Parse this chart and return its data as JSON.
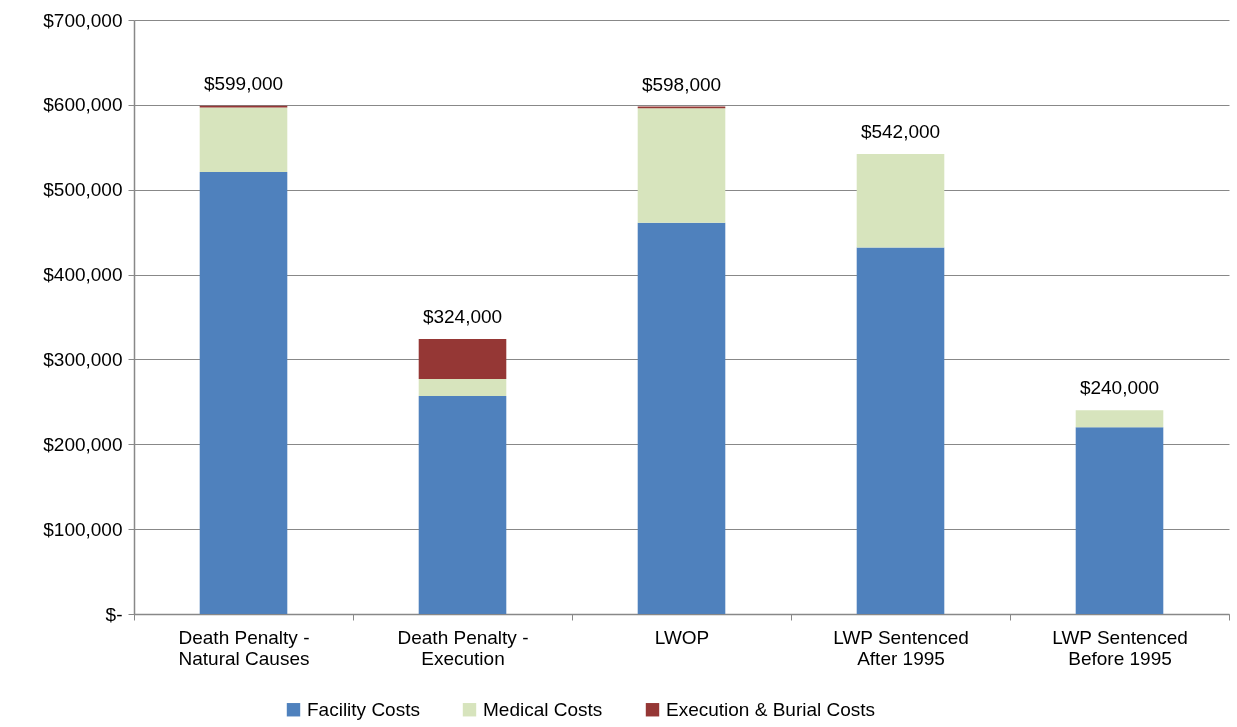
{
  "chart_data": {
    "type": "bar",
    "stacked": true,
    "categories": [
      "Death Penalty - Natural Causes",
      "Death Penalty - Execution",
      "LWOP",
      "LWP Sentenced After 1995",
      "LWP Sentenced Before 1995"
    ],
    "series": [
      {
        "name": "Facility Costs",
        "color": "#4f81bd",
        "values": [
          521000,
          257000,
          461000,
          432000,
          220000
        ]
      },
      {
        "name": "Medical Costs",
        "color": "#d7e4bd",
        "values": [
          76000,
          20000,
          135000,
          110000,
          20000
        ]
      },
      {
        "name": "Execution & Burial Costs",
        "color": "#953735",
        "values": [
          2000,
          47000,
          2000,
          0,
          0
        ]
      }
    ],
    "totals": [
      "$599,000",
      "$324,000",
      "$598,000",
      "$542,000",
      "$240,000"
    ],
    "ylim": [
      0,
      700000
    ],
    "yticks": [
      {
        "value": 0,
        "label": "$-"
      },
      {
        "value": 100000,
        "label": "$100,000"
      },
      {
        "value": 200000,
        "label": "$200,000"
      },
      {
        "value": 300000,
        "label": "$300,000"
      },
      {
        "value": 400000,
        "label": "$400,000"
      },
      {
        "value": 500000,
        "label": "$500,000"
      },
      {
        "value": 600000,
        "label": "$600,000"
      },
      {
        "value": 700000,
        "label": "$700,000"
      }
    ],
    "grid": "y",
    "legend": "bottom"
  }
}
